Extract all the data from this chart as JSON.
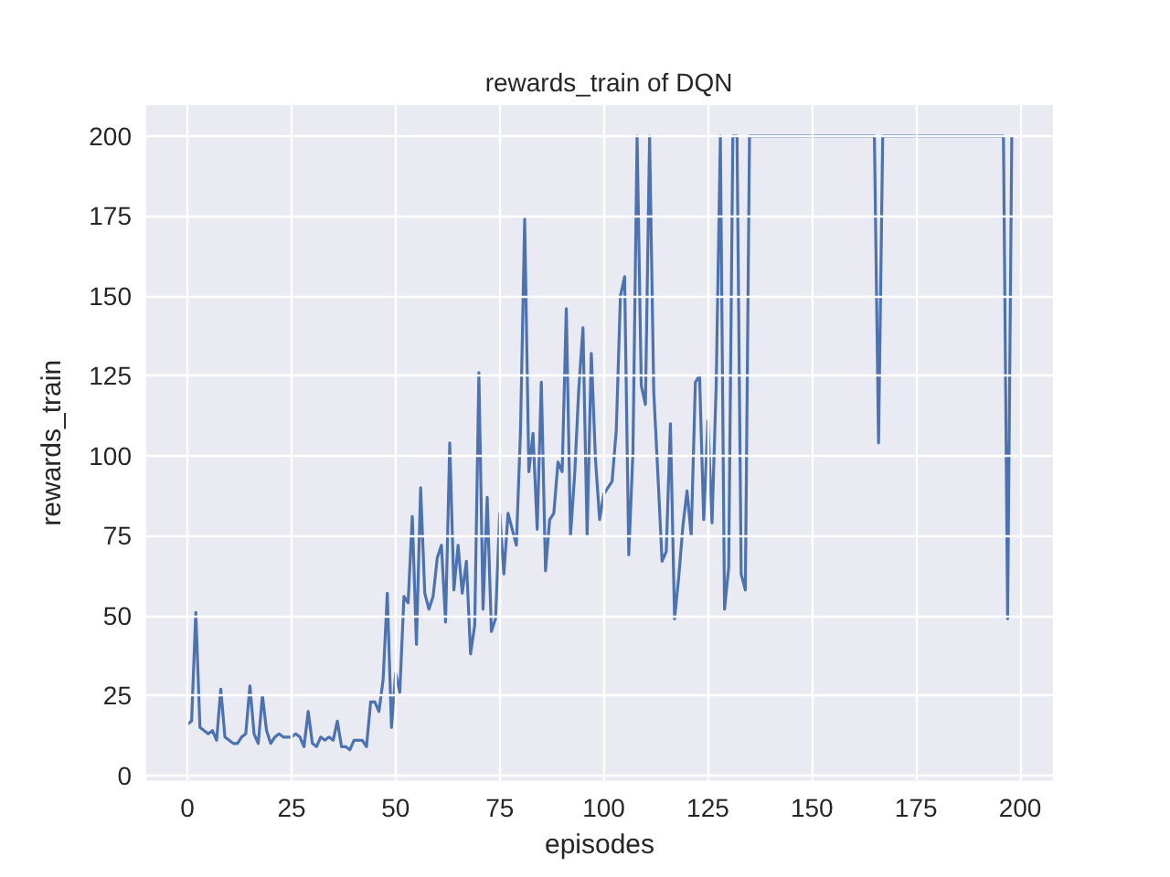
{
  "chart_data": {
    "type": "line",
    "title": "rewards_train of DQN",
    "xlabel": "episodes",
    "ylabel": "rewards_train",
    "x": [
      0,
      1,
      2,
      3,
      4,
      5,
      6,
      7,
      8,
      9,
      10,
      11,
      12,
      13,
      14,
      15,
      16,
      17,
      18,
      19,
      20,
      21,
      22,
      23,
      24,
      25,
      26,
      27,
      28,
      29,
      30,
      31,
      32,
      33,
      34,
      35,
      36,
      37,
      38,
      39,
      40,
      41,
      42,
      43,
      44,
      45,
      46,
      47,
      48,
      49,
      50,
      51,
      52,
      53,
      54,
      55,
      56,
      57,
      58,
      59,
      60,
      61,
      62,
      63,
      64,
      65,
      66,
      67,
      68,
      69,
      70,
      71,
      72,
      73,
      74,
      75,
      76,
      77,
      78,
      79,
      80,
      81,
      82,
      83,
      84,
      85,
      86,
      87,
      88,
      89,
      90,
      91,
      92,
      93,
      94,
      95,
      96,
      97,
      98,
      99,
      100,
      101,
      102,
      103,
      104,
      105,
      106,
      107,
      108,
      109,
      110,
      111,
      112,
      113,
      114,
      115,
      116,
      117,
      118,
      119,
      120,
      121,
      122,
      123,
      124,
      125,
      126,
      127,
      128,
      129,
      130,
      131,
      132,
      133,
      134,
      135,
      136,
      137,
      138,
      139,
      140,
      141,
      142,
      143,
      144,
      145,
      146,
      147,
      148,
      149,
      150,
      151,
      152,
      153,
      154,
      155,
      156,
      157,
      158,
      159,
      160,
      161,
      162,
      163,
      164,
      165,
      166,
      167,
      168,
      169,
      170,
      171,
      172,
      173,
      174,
      175,
      176,
      177,
      178,
      179,
      180,
      181,
      182,
      183,
      184,
      185,
      186,
      187,
      188,
      189,
      190,
      191,
      192,
      193,
      194,
      195,
      196,
      197,
      198
    ],
    "series": [
      {
        "color": "#4c72b0",
        "values": [
          16,
          17,
          51,
          15,
          14,
          13,
          14,
          11,
          27,
          12,
          11,
          10,
          10,
          12,
          13,
          28,
          13,
          10,
          25,
          14,
          10,
          12,
          13,
          12,
          12,
          12,
          13,
          12,
          9,
          20,
          10,
          9,
          12,
          11,
          12,
          11,
          17,
          9,
          9,
          8,
          11,
          11,
          11,
          9,
          23,
          23,
          20,
          30,
          57,
          15,
          32,
          26,
          56,
          54,
          81,
          41,
          90,
          57,
          52,
          56,
          68,
          72,
          48,
          104,
          58,
          72,
          57,
          67,
          38,
          47,
          126,
          52,
          87,
          45,
          49,
          82,
          63,
          82,
          77,
          72,
          108,
          174,
          95,
          107,
          77,
          123,
          64,
          80,
          82,
          98,
          95,
          146,
          75,
          94,
          121,
          140,
          75,
          132,
          99,
          80,
          88,
          90,
          92,
          108,
          150,
          156,
          69,
          101,
          200,
          122,
          116,
          200,
          120,
          94,
          67,
          70,
          110,
          49,
          62,
          78,
          89,
          75,
          123,
          125,
          80,
          111,
          79,
          122,
          200,
          52,
          65,
          200,
          200,
          63,
          58,
          200,
          200,
          200,
          200,
          200,
          200,
          200,
          200,
          200,
          200,
          200,
          200,
          200,
          200,
          200,
          200,
          200,
          200,
          200,
          200,
          200,
          200,
          200,
          200,
          200,
          200,
          200,
          200,
          200,
          200,
          200,
          104,
          200,
          200,
          200,
          200,
          200,
          200,
          200,
          200,
          200,
          200,
          200,
          200,
          200,
          200,
          200,
          200,
          200,
          200,
          200,
          200,
          200,
          200,
          200,
          200,
          200,
          200,
          200,
          200,
          200,
          200,
          49,
          200
        ]
      }
    ],
    "xlim": [
      -9.9,
      207.9
    ],
    "xticks": [
      0,
      25,
      50,
      75,
      100,
      125,
      150,
      175,
      200
    ],
    "ylim": [
      -1.6,
      209.6
    ],
    "yticks": [
      0,
      25,
      50,
      75,
      100,
      125,
      150,
      175,
      200
    ],
    "grid": true,
    "line_style": "solid"
  }
}
